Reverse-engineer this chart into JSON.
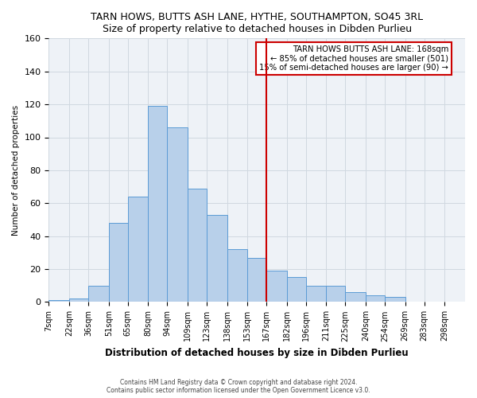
{
  "title": "TARN HOWS, BUTTS ASH LANE, HYTHE, SOUTHAMPTON, SO45 3RL",
  "subtitle": "Size of property relative to detached houses in Dibden Purlieu",
  "xlabel": "Distribution of detached houses by size in Dibden Purlieu",
  "ylabel": "Number of detached properties",
  "bar_labels": [
    "7sqm",
    "22sqm",
    "36sqm",
    "51sqm",
    "65sqm",
    "80sqm",
    "94sqm",
    "109sqm",
    "123sqm",
    "138sqm",
    "153sqm",
    "167sqm",
    "182sqm",
    "196sqm",
    "211sqm",
    "225sqm",
    "240sqm",
    "254sqm",
    "269sqm",
    "283sqm",
    "298sqm"
  ],
  "bar_heights": [
    1,
    2,
    10,
    48,
    64,
    119,
    106,
    69,
    53,
    32,
    27,
    19,
    15,
    10,
    10,
    6,
    4,
    3,
    0,
    0,
    0
  ],
  "bar_color": "#b8d0ea",
  "bar_edgecolor": "#5b9bd5",
  "vline_x": 167,
  "vline_color": "#cc0000",
  "annotation_title": "TARN HOWS BUTTS ASH LANE: 168sqm",
  "annotation_line1": "← 85% of detached houses are smaller (501)",
  "annotation_line2": "15% of semi-detached houses are larger (90) →",
  "annotation_box_color": "#cc0000",
  "ylim": [
    0,
    160
  ],
  "yticks": [
    0,
    20,
    40,
    60,
    80,
    100,
    120,
    140,
    160
  ],
  "grid_color": "#d0d8e0",
  "bg_color": "#eef2f7",
  "footer1": "Contains HM Land Registry data © Crown copyright and database right 2024.",
  "footer2": "Contains public sector information licensed under the Open Government Licence v3.0."
}
